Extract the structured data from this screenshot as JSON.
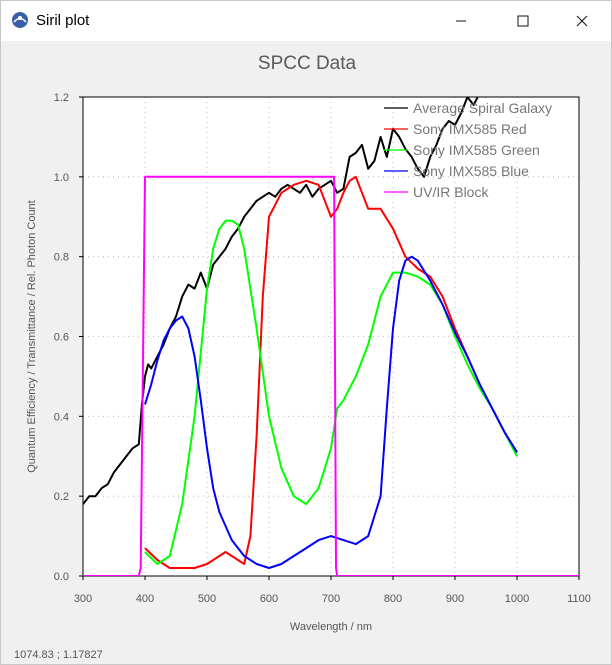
{
  "window": {
    "title": "Siril plot",
    "minimize_icon": "minimize-icon",
    "maximize_icon": "maximize-icon",
    "close_icon": "close-icon"
  },
  "status": {
    "cursor_x": "1074.83",
    "separator": ";",
    "cursor_y": "1.17827"
  },
  "chart_data": {
    "type": "line",
    "title": "SPCC Data",
    "xlabel": "Wavelength / nm",
    "ylabel": "Quantum Efficiency / Transmittance / Rel. Photon Count",
    "xlim": [
      300,
      1100
    ],
    "ylim": [
      0.0,
      1.2
    ],
    "xticks": [
      300,
      400,
      500,
      600,
      700,
      800,
      900,
      1000,
      1100
    ],
    "yticks": [
      0.0,
      0.2,
      0.4,
      0.6,
      0.8,
      1.0,
      1.2
    ],
    "xtick_labels": [
      "300",
      "400",
      "500",
      "600",
      "700",
      "800",
      "900",
      "1000",
      "1100"
    ],
    "ytick_labels": [
      "0.0",
      "0.2",
      "0.4",
      "0.6",
      "0.8",
      "1.0",
      "1.2"
    ],
    "grid": true,
    "legend_position": "top-right",
    "series": [
      {
        "name": "Average Spiral Galaxy",
        "color": "#000000",
        "x": [
          300,
          310,
          320,
          330,
          340,
          350,
          360,
          370,
          380,
          390,
          395,
          400,
          405,
          410,
          420,
          430,
          440,
          450,
          460,
          470,
          480,
          490,
          500,
          510,
          520,
          530,
          540,
          550,
          560,
          570,
          580,
          590,
          600,
          610,
          620,
          630,
          640,
          650,
          660,
          670,
          680,
          690,
          700,
          710,
          720,
          730,
          740,
          750,
          760,
          770,
          780,
          790,
          800,
          810,
          820,
          830,
          840,
          850,
          860,
          870,
          880,
          890,
          900,
          910,
          920,
          930,
          940,
          950
        ],
        "y": [
          0.18,
          0.2,
          0.2,
          0.22,
          0.23,
          0.26,
          0.28,
          0.3,
          0.32,
          0.33,
          0.43,
          0.5,
          0.53,
          0.52,
          0.55,
          0.58,
          0.62,
          0.65,
          0.7,
          0.73,
          0.72,
          0.76,
          0.72,
          0.78,
          0.8,
          0.82,
          0.85,
          0.87,
          0.9,
          0.92,
          0.94,
          0.95,
          0.96,
          0.95,
          0.97,
          0.98,
          0.97,
          0.96,
          0.98,
          0.95,
          0.97,
          0.98,
          0.99,
          0.96,
          0.97,
          1.05,
          1.06,
          1.08,
          1.02,
          1.04,
          1.1,
          1.05,
          1.12,
          1.1,
          1.07,
          1.05,
          1.02,
          1.0,
          1.05,
          1.08,
          1.12,
          1.14,
          1.13,
          1.16,
          1.2,
          1.18,
          1.21,
          1.2
        ]
      },
      {
        "name": "Sony IMX585 Red",
        "color": "#ff0000",
        "x": [
          400,
          420,
          440,
          460,
          480,
          500,
          520,
          530,
          540,
          560,
          570,
          580,
          590,
          600,
          620,
          640,
          660,
          680,
          700,
          710,
          720,
          730,
          740,
          760,
          780,
          800,
          820,
          840,
          860,
          880,
          900,
          920,
          940,
          960,
          980,
          1000
        ],
        "y": [
          0.07,
          0.04,
          0.02,
          0.02,
          0.02,
          0.03,
          0.05,
          0.06,
          0.05,
          0.03,
          0.1,
          0.35,
          0.7,
          0.9,
          0.96,
          0.98,
          0.99,
          0.98,
          0.9,
          0.92,
          0.96,
          0.99,
          1.0,
          0.92,
          0.92,
          0.87,
          0.8,
          0.77,
          0.75,
          0.7,
          0.62,
          0.55,
          0.48,
          0.42,
          0.36,
          0.31
        ]
      },
      {
        "name": "Sony IMX585 Green",
        "color": "#00ff00",
        "x": [
          400,
          420,
          440,
          460,
          480,
          500,
          510,
          520,
          530,
          540,
          550,
          560,
          580,
          600,
          620,
          640,
          660,
          680,
          700,
          710,
          720,
          740,
          760,
          780,
          800,
          820,
          840,
          860,
          880,
          900,
          920,
          940,
          960,
          980,
          1000
        ],
        "y": [
          0.06,
          0.03,
          0.05,
          0.18,
          0.4,
          0.72,
          0.82,
          0.87,
          0.89,
          0.89,
          0.88,
          0.82,
          0.62,
          0.4,
          0.27,
          0.2,
          0.18,
          0.22,
          0.32,
          0.42,
          0.44,
          0.5,
          0.58,
          0.7,
          0.76,
          0.76,
          0.75,
          0.73,
          0.68,
          0.6,
          0.53,
          0.47,
          0.42,
          0.36,
          0.3
        ]
      },
      {
        "name": "Sony IMX585 Blue",
        "color": "#0000ff",
        "x": [
          400,
          410,
          420,
          430,
          440,
          450,
          460,
          470,
          480,
          490,
          500,
          510,
          520,
          540,
          560,
          580,
          600,
          620,
          640,
          660,
          680,
          700,
          720,
          740,
          760,
          780,
          790,
          800,
          810,
          820,
          830,
          840,
          860,
          880,
          900,
          920,
          940,
          960,
          980,
          1000
        ],
        "y": [
          0.43,
          0.48,
          0.54,
          0.59,
          0.62,
          0.64,
          0.65,
          0.62,
          0.55,
          0.44,
          0.32,
          0.22,
          0.16,
          0.09,
          0.05,
          0.03,
          0.02,
          0.03,
          0.05,
          0.07,
          0.09,
          0.1,
          0.09,
          0.08,
          0.1,
          0.2,
          0.42,
          0.62,
          0.74,
          0.79,
          0.8,
          0.79,
          0.74,
          0.68,
          0.61,
          0.55,
          0.48,
          0.42,
          0.36,
          0.31
        ]
      },
      {
        "name": "UV/IR Block",
        "color": "#ff00ff",
        "x": [
          300,
          390,
          393,
          400,
          705,
          708,
          710,
          1100
        ],
        "y": [
          0.0,
          0.0,
          0.02,
          1.0,
          1.0,
          0.02,
          0.0,
          0.0
        ]
      }
    ]
  }
}
